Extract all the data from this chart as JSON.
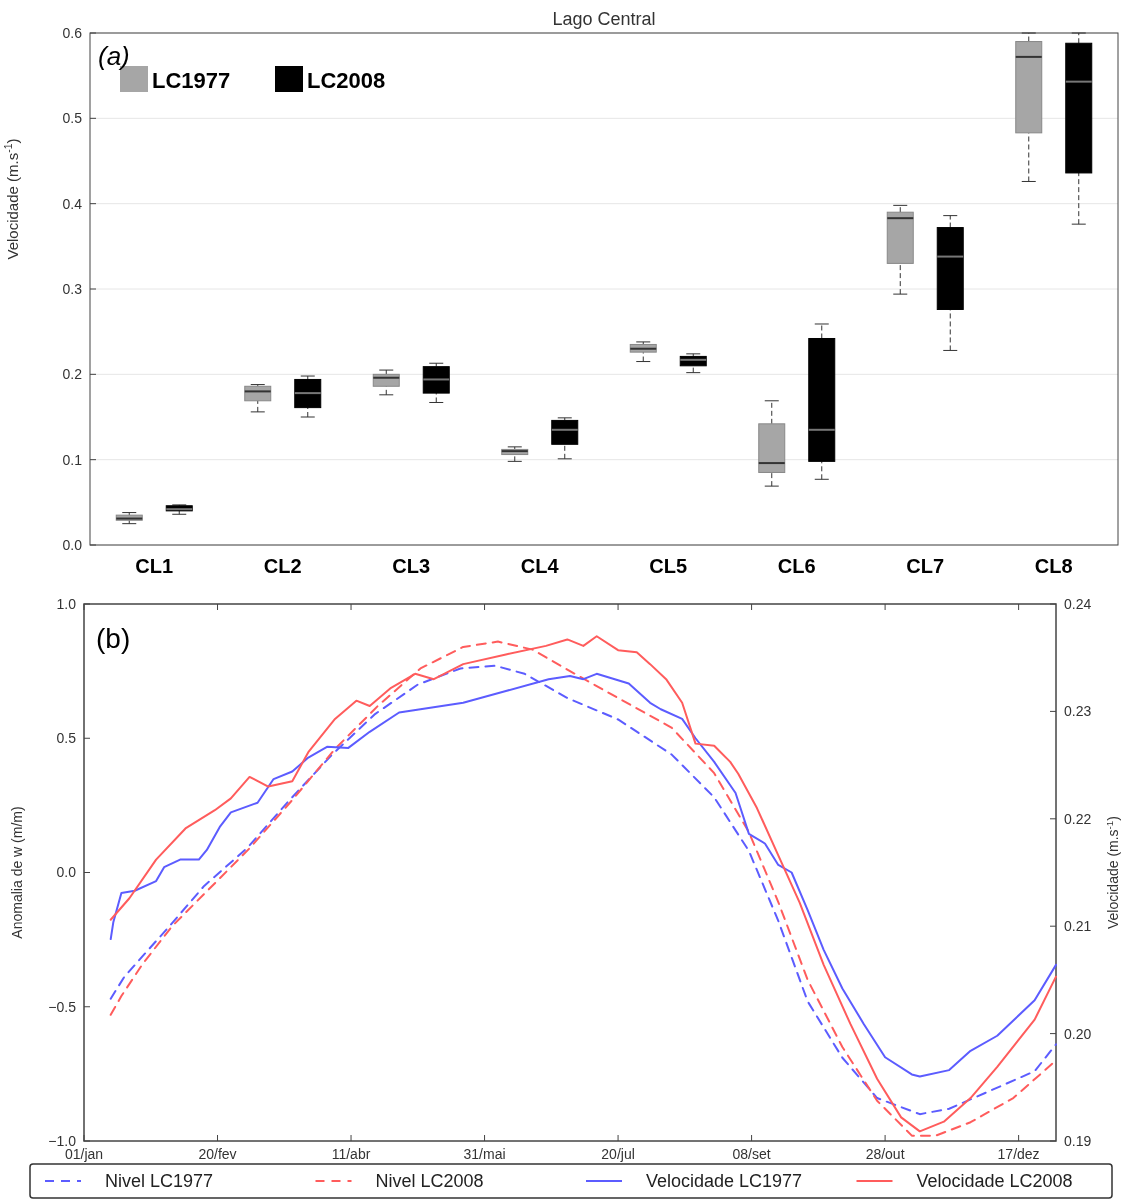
{
  "chart_data": [
    {
      "type": "box",
      "title": "Lago Central",
      "ylabel": "Velocidade (m.s$^{-1}$)",
      "annotations": [
        "(a)"
      ],
      "categories": [
        "CL1",
        "CL2",
        "CL3",
        "CL4",
        "CL5",
        "CL6",
        "CL7",
        "CL8"
      ],
      "ylim": [
        0,
        0.6
      ],
      "yticks": [
        {
          "value": 0,
          "label": "0.0"
        },
        0.1,
        0.2,
        0.3,
        0.4,
        0.5,
        0.6
      ],
      "grid": "y",
      "legend": "top left",
      "series": [
        {
          "name": "LC1977",
          "color": "#a6a6a6",
          "boxes": [
            {
              "low": 0.025,
              "q1": 0.029,
              "median": 0.031,
              "q3": 0.035,
              "high": 0.038
            },
            {
              "low": 0.156,
              "q1": 0.169,
              "median": 0.18,
              "q3": 0.186,
              "high": 0.188
            },
            {
              "low": 0.176,
              "q1": 0.186,
              "median": 0.196,
              "q3": 0.2,
              "high": 0.205
            },
            {
              "low": 0.098,
              "q1": 0.106,
              "median": 0.11,
              "q3": 0.112,
              "high": 0.115
            },
            {
              "low": 0.215,
              "q1": 0.226,
              "median": 0.23,
              "q3": 0.235,
              "high": 0.238
            },
            {
              "low": 0.069,
              "q1": 0.085,
              "median": 0.096,
              "q3": 0.142,
              "high": 0.169
            },
            {
              "low": 0.294,
              "q1": 0.33,
              "median": 0.383,
              "q3": 0.39,
              "high": 0.398
            },
            {
              "low": 0.426,
              "q1": 0.483,
              "median": 0.572,
              "q3": 0.59,
              "high": 0.6
            }
          ]
        },
        {
          "name": "LC2008",
          "color": "#000000",
          "boxes": [
            {
              "low": 0.036,
              "q1": 0.04,
              "median": 0.042,
              "q3": 0.046,
              "high": 0.047
            },
            {
              "low": 0.15,
              "q1": 0.161,
              "median": 0.178,
              "q3": 0.194,
              "high": 0.198
            },
            {
              "low": 0.167,
              "q1": 0.178,
              "median": 0.194,
              "q3": 0.209,
              "high": 0.213
            },
            {
              "low": 0.101,
              "q1": 0.118,
              "median": 0.135,
              "q3": 0.146,
              "high": 0.149
            },
            {
              "low": 0.202,
              "q1": 0.21,
              "median": 0.217,
              "q3": 0.221,
              "high": 0.224
            },
            {
              "low": 0.077,
              "q1": 0.098,
              "median": 0.135,
              "q3": 0.242,
              "high": 0.259
            },
            {
              "low": 0.228,
              "q1": 0.276,
              "median": 0.338,
              "q3": 0.372,
              "high": 0.386
            },
            {
              "low": 0.376,
              "q1": 0.436,
              "median": 0.543,
              "q3": 0.588,
              "high": 0.6
            }
          ]
        }
      ]
    },
    {
      "type": "line",
      "ylabel": "Anomalia de w (m/m)",
      "y2label": "Velocidade (m.s$^{-1}$)",
      "annotations": [
        "(b)"
      ],
      "xlim": [
        "--01-01",
        "--12-31"
      ],
      "xticks": [
        {
          "value": "--01-01",
          "label": "01/jan"
        },
        {
          "value": "--02-20",
          "label": "20/fev"
        },
        {
          "value": "--04-11",
          "label": "11/abr"
        },
        {
          "value": "--05-31",
          "label": "31/mai"
        },
        {
          "value": "--07-20",
          "label": "20/jul"
        },
        {
          "value": "--09-08",
          "label": "08/set"
        },
        {
          "value": "--10-28",
          "label": "28/out"
        },
        {
          "value": "--12-17",
          "label": "17/dez"
        }
      ],
      "ylim": [
        -1,
        1
      ],
      "yticks": [
        {
          "value": -1,
          "label": "−1.0"
        },
        {
          "value": -0.5,
          "label": "−0.5"
        },
        {
          "value": 0,
          "label": "0.0"
        },
        0.5,
        {
          "value": 1,
          "label": "1.0"
        }
      ],
      "y2lim": [
        0.19,
        0.24
      ],
      "y2ticks": [
        0.19,
        {
          "value": 0.2,
          "label": "0.20"
        },
        0.21,
        0.22,
        0.23,
        0.24
      ],
      "legend": "bottom",
      "series": [
        {
          "name": "Nivel LC1977",
          "color": "#5c5cff",
          "line_style": "dashed",
          "x": [
            "--01-11",
            "--01-16",
            "--01-24",
            "--02-02",
            "--02-15",
            "--03-03",
            "--03-19",
            "--04-04",
            "--04-20",
            "--05-06",
            "--05-22",
            "--06-04",
            "--06-15",
            "--07-01",
            "--07-20",
            "--08-09",
            "--08-25",
            "--09-07",
            "--09-18",
            "--09-29",
            "--10-12",
            "--10-25",
            "--11-10",
            "--11-21",
            "--12-07",
            "--12-23",
            "--12-31"
          ],
          "values": [
            -0.47,
            -0.39,
            -0.3,
            -0.2,
            -0.05,
            0.09,
            0.27,
            0.44,
            0.59,
            0.7,
            0.76,
            0.77,
            0.74,
            0.65,
            0.57,
            0.44,
            0.28,
            0.08,
            -0.18,
            -0.48,
            -0.69,
            -0.84,
            -0.9,
            -0.88,
            -0.81,
            -0.74,
            -0.64
          ]
        },
        {
          "name": "Nivel LC2008",
          "color": "#ff5c5c",
          "line_style": "dashed",
          "x": [
            "--01-11",
            "--01-15",
            "--01-23",
            "--02-03",
            "--02-16",
            "--03-04",
            "--03-20",
            "--04-05",
            "--04-21",
            "--05-07",
            "--05-23",
            "--06-05",
            "--06-18",
            "--07-02",
            "--07-20",
            "--08-09",
            "--08-25",
            "--09-07",
            "--09-18",
            "--09-29",
            "--10-12",
            "--10-25",
            "--11-07",
            "--11-16",
            "--11-29",
            "--12-15",
            "--12-31"
          ],
          "values": [
            -0.53,
            -0.46,
            -0.34,
            -0.2,
            -0.07,
            0.09,
            0.27,
            0.46,
            0.62,
            0.76,
            0.84,
            0.86,
            0.83,
            0.75,
            0.65,
            0.54,
            0.37,
            0.15,
            -0.11,
            -0.4,
            -0.65,
            -0.85,
            -0.98,
            -0.98,
            -0.93,
            -0.84,
            -0.7
          ]
        },
        {
          "name": "Velocidade LC1977",
          "color": "#5c5cff",
          "line_style": "solid",
          "axis": "y2",
          "x": [
            "--01-11",
            "--01-12",
            "--01-15",
            "--01-20",
            "--01-28",
            "--01-31",
            "--02-06",
            "--02-13",
            "--02-16",
            "--02-21",
            "--02-25",
            "--03-07",
            "--03-13",
            "--03-20",
            "--03-26",
            "--04-02",
            "--04-10",
            "--04-18",
            "--04-29",
            "--05-07",
            "--05-23",
            "--06-08",
            "--06-24",
            "--07-02",
            "--07-07",
            "--07-12",
            "--07-24",
            "--08-01",
            "--08-05",
            "--08-13",
            "--08-18",
            "--08-25",
            "--09-02",
            "--09-07",
            "--09-13",
            "--09-18",
            "--09-23",
            "--09-29",
            "--10-05",
            "--10-12",
            "--10-20",
            "--10-28",
            "--11-07",
            "--11-10",
            "--11-21",
            "--11-29",
            "--12-09",
            "--12-23",
            "--12-31"
          ],
          "values": [
            0.2088,
            0.2104,
            0.2131,
            0.2133,
            0.2142,
            0.2155,
            0.2162,
            0.2162,
            0.2171,
            0.2193,
            0.2206,
            0.2215,
            0.2237,
            0.2244,
            0.2257,
            0.2267,
            0.2266,
            0.2281,
            0.2299,
            0.2302,
            0.2308,
            0.2319,
            0.233,
            0.2333,
            0.233,
            0.2335,
            0.2326,
            0.2308,
            0.2302,
            0.2293,
            0.2275,
            0.2253,
            0.2224,
            0.2186,
            0.2177,
            0.2157,
            0.215,
            0.2115,
            0.2078,
            0.2042,
            0.2009,
            0.1978,
            0.1962,
            0.196,
            0.1966,
            0.1984,
            0.1998,
            0.2031,
            0.2064
          ]
        },
        {
          "name": "Velocidade LC2008",
          "color": "#ff5c5c",
          "line_style": "solid",
          "axis": "y2",
          "x": [
            "--01-11",
            "--01-18",
            "--01-28",
            "--02-08",
            "--02-19",
            "--02-25",
            "--03-04",
            "--03-11",
            "--03-20",
            "--03-26",
            "--04-05",
            "--04-13",
            "--04-18",
            "--04-26",
            "--05-05",
            "--05-12",
            "--05-23",
            "--06-08",
            "--06-23",
            "--07-01",
            "--07-07",
            "--07-12",
            "--07-20",
            "--07-27",
            "--08-01",
            "--08-07",
            "--08-13",
            "--08-18",
            "--08-25",
            "--08-31",
            "--09-03",
            "--09-10",
            "--09-18",
            "--09-26",
            "--10-05",
            "--10-15",
            "--10-25",
            "--11-03",
            "--11-10",
            "--11-19",
            "--11-29",
            "--12-09",
            "--12-23",
            "--12-31"
          ],
          "values": [
            0.2106,
            0.2126,
            0.2162,
            0.2191,
            0.2208,
            0.2219,
            0.2239,
            0.223,
            0.2235,
            0.2262,
            0.2293,
            0.231,
            0.2305,
            0.2322,
            0.2335,
            0.233,
            0.2344,
            0.2353,
            0.2361,
            0.2367,
            0.2361,
            0.237,
            0.2357,
            0.2355,
            0.2344,
            0.233,
            0.2308,
            0.227,
            0.2268,
            0.2253,
            0.2242,
            0.221,
            0.2166,
            0.2122,
            0.2064,
            0.2009,
            0.1958,
            0.1922,
            0.1909,
            0.1918,
            0.194,
            0.1969,
            0.2013,
            0.2053
          ]
        }
      ]
    }
  ]
}
